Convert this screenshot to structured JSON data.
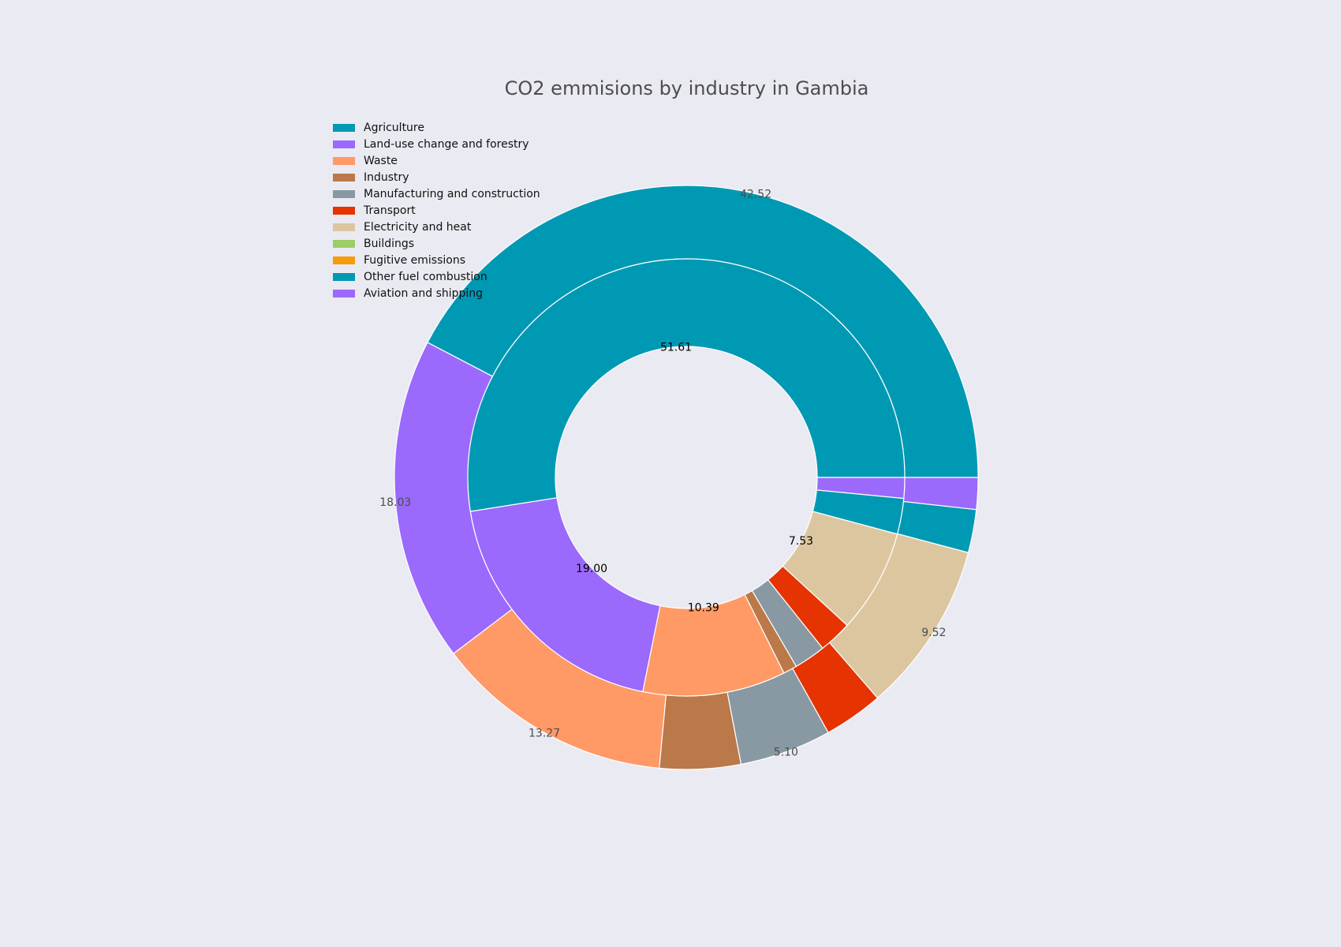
{
  "chart_data": {
    "type": "pie",
    "variant": "nested-donut",
    "title": "CO2 emmisions by industry in Gambia",
    "legend_position": "top-left",
    "categories": [
      "Agriculture",
      "Land-use change and forestry",
      "Waste",
      "Industry",
      "Manufacturing and construction",
      "Transport",
      "Electricity and heat",
      "Buildings",
      "Fugitive emissions",
      "Other fuel combustion",
      "Aviation and shipping"
    ],
    "colors": [
      "#0099b4",
      "#9b69fc",
      "#ff9966",
      "#bb7849",
      "#8899a3",
      "#e53302",
      "#dcc6a0",
      "#9ccd66",
      "#f79a0b",
      "#0099b4",
      "#9b69fc"
    ],
    "series": [
      {
        "ring": "outer",
        "values": [
          42.52,
          18.03,
          13.27,
          4.5,
          5.1,
          3.3,
          9.52,
          0.0,
          0.0,
          2.4,
          1.76
        ],
        "labels": [
          "42.52",
          "18.03",
          "13.27",
          "",
          "5.10",
          "",
          "9.52",
          "",
          "",
          "",
          ""
        ]
      },
      {
        "ring": "inner",
        "values": [
          51.61,
          19.0,
          10.39,
          1.0,
          2.3,
          2.4,
          7.53,
          0.0,
          0.0,
          2.6,
          1.5
        ],
        "labels": [
          "51.61",
          "19.00",
          "10.39",
          "",
          "",
          "",
          "7.53",
          "",
          "",
          "",
          ""
        ]
      }
    ]
  }
}
